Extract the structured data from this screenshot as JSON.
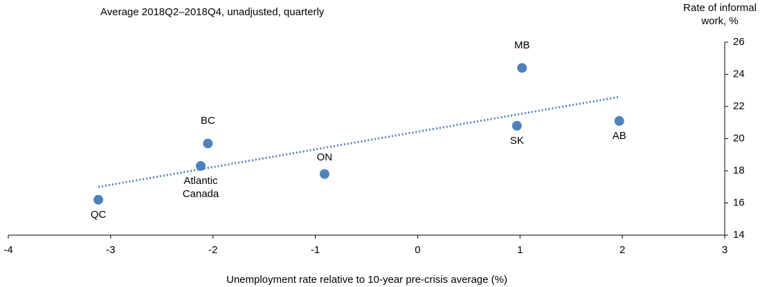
{
  "chart_data": {
    "type": "scatter",
    "title": "Average 2018Q2–2018Q4, unadjusted, quarterly",
    "x_label": "Unemployment rate relative to 10-year pre-crisis average (%)",
    "y_label": "Rate of informal work, %",
    "categories": [
      "QC",
      "Atlantic Canada",
      "BC",
      "ON",
      "MB",
      "SK",
      "AB"
    ],
    "x": [
      -3.12,
      -2.12,
      -2.05,
      -0.91,
      1.02,
      0.97,
      1.97
    ],
    "values": [
      16.2,
      18.3,
      19.7,
      17.8,
      24.4,
      20.8,
      21.1
    ],
    "color": "#4f81bd",
    "trendline": {
      "x": [
        -3.12,
        1.97
      ],
      "values": [
        17.0,
        22.6
      ],
      "color": "#4f81bd"
    },
    "xlim": [
      -4,
      3
    ],
    "xticks": [
      -4,
      -3,
      -2,
      -1,
      0,
      1,
      2,
      3
    ],
    "ylim": [
      14,
      26
    ],
    "yticks": [
      14,
      16,
      18,
      20,
      22,
      24,
      26
    ],
    "y_axis_side": "right"
  }
}
